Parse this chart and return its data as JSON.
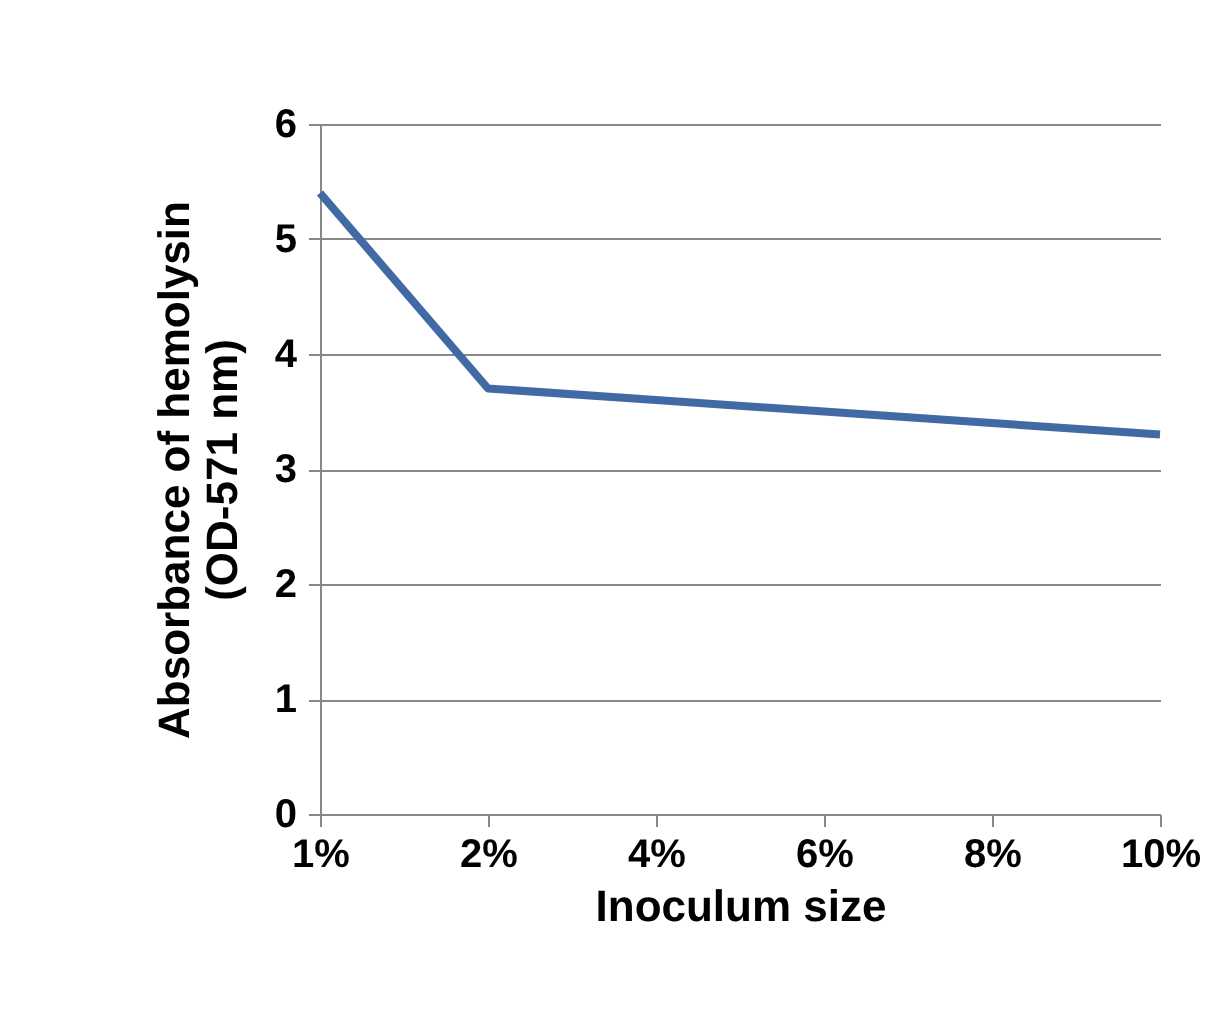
{
  "chart_data": {
    "type": "line",
    "xlabel": "Inoculum size",
    "ylabel": "Absorbance of hemolysin\n(OD-571 nm)",
    "categories": [
      "1%",
      "2%",
      "4%",
      "6%",
      "8%",
      "10%"
    ],
    "series": [
      {
        "color": "#4169a3",
        "values": [
          5.4,
          3.7,
          3.6,
          3.5,
          3.4,
          3.3
        ]
      }
    ],
    "ylim": [
      0,
      6
    ],
    "yticks": [
      0,
      1,
      2,
      3,
      4,
      5,
      6
    ],
    "grid": "y",
    "legend": false,
    "marker": "none",
    "line_style": "solid"
  }
}
